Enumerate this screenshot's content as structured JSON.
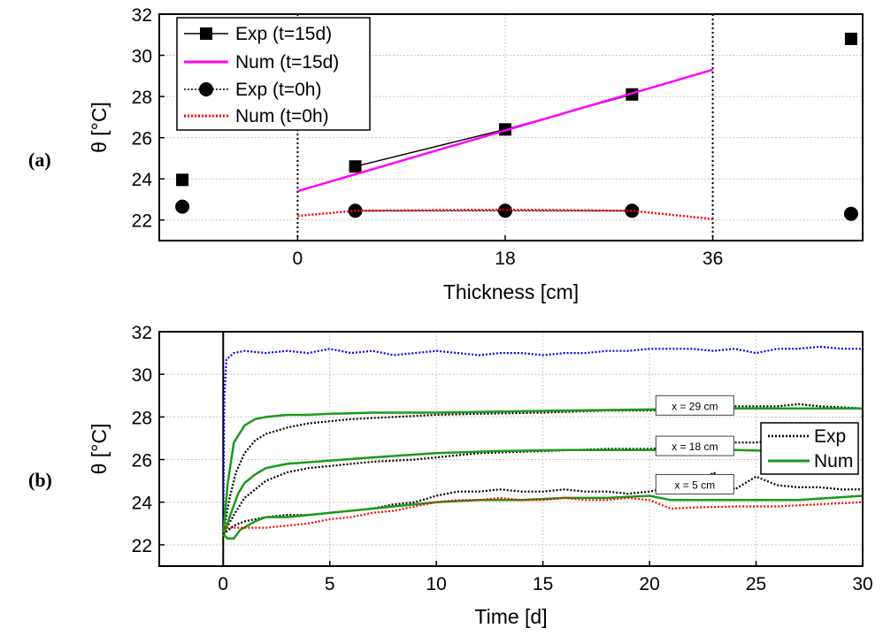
{
  "panel_a_label": "(a)",
  "panel_b_label": "(b)",
  "chart_data": [
    {
      "id": "a",
      "type": "scatter",
      "title": "",
      "xlabel": "Thickness [cm]",
      "ylabel": "θ [°C]",
      "xlim": [
        -12,
        49
      ],
      "ylim": [
        21,
        32
      ],
      "xticks": [
        0,
        18,
        36
      ],
      "yticks": [
        22,
        24,
        26,
        28,
        30,
        32
      ],
      "vlines": [
        0,
        36
      ],
      "grid": true,
      "legend_position": "top-left",
      "series": [
        {
          "name": "Exp (t=15d)",
          "style": "line-square",
          "color": "#000000",
          "x": [
            -10,
            5,
            18,
            29,
            48
          ],
          "y": [
            23.95,
            24.6,
            26.4,
            28.1,
            30.8
          ],
          "line_x": [
            5,
            18,
            29
          ],
          "line_y": [
            24.6,
            26.4,
            28.1
          ]
        },
        {
          "name": "Num (t=15d)",
          "style": "line",
          "color": "#ff00ff",
          "x": [
            0,
            36
          ],
          "y": [
            23.4,
            29.3
          ]
        },
        {
          "name": "Exp (t=0h)",
          "style": "dotted-circle",
          "color": "#000000",
          "x": [
            -10,
            5,
            18,
            29,
            48
          ],
          "y": [
            22.65,
            22.45,
            22.45,
            22.45,
            22.3
          ],
          "line_x": [
            5,
            18,
            29
          ],
          "line_y": [
            22.45,
            22.45,
            22.45
          ]
        },
        {
          "name": "Num (t=0h)",
          "style": "dotted",
          "color": "#ff0000",
          "x": [
            0,
            5,
            18,
            29,
            36
          ],
          "y": [
            22.2,
            22.45,
            22.5,
            22.45,
            22.05
          ]
        }
      ]
    },
    {
      "id": "b",
      "type": "line",
      "title": "",
      "xlabel": "Time [d]",
      "ylabel": "θ [°C]",
      "xlim": [
        -3,
        30
      ],
      "ylim": [
        21,
        32
      ],
      "xticks": [
        0,
        5,
        10,
        15,
        20,
        25,
        30
      ],
      "yticks": [
        22,
        24,
        26,
        28,
        30,
        32
      ],
      "vlines": [
        0
      ],
      "grid": true,
      "legend_position": "right",
      "legend": [
        "Exp",
        "Num"
      ],
      "annotations": [
        {
          "text": "x = 29 cm",
          "x": 20.3,
          "y": 28.5
        },
        {
          "text": "x = 18 cm",
          "x": 20.3,
          "y": 26.6
        },
        {
          "text": "x = 5 cm",
          "x": 20.3,
          "y": 24.8
        }
      ],
      "series": [
        {
          "name": "blue",
          "color": "#0000ff",
          "style": "dotted",
          "x": [
            0,
            0.05,
            0.15,
            0.5,
            1,
            2,
            3,
            4,
            5,
            6,
            7,
            8,
            9,
            10,
            11,
            12,
            13,
            14,
            15,
            16,
            17,
            18,
            19,
            20,
            21,
            22,
            23,
            24,
            25,
            26,
            27,
            28,
            29,
            30
          ],
          "y": [
            22.5,
            29.0,
            30.7,
            31.0,
            31.1,
            31.0,
            31.1,
            31.0,
            31.2,
            31.0,
            31.1,
            30.9,
            31.0,
            31.1,
            31.0,
            30.9,
            31.0,
            31.0,
            30.9,
            31.0,
            31.0,
            31.1,
            31.1,
            31.2,
            31.2,
            31.2,
            31.1,
            31.2,
            31.0,
            31.2,
            31.2,
            31.3,
            31.2,
            31.2
          ]
        },
        {
          "name": "Exp x=29",
          "color": "#000000",
          "style": "dotted",
          "x": [
            0,
            0.3,
            0.6,
            1,
            1.5,
            2,
            3,
            4,
            5,
            6,
            8,
            10,
            12,
            15,
            18,
            20,
            22,
            24,
            26,
            27,
            28,
            30
          ],
          "y": [
            22.5,
            24.2,
            25.4,
            26.3,
            26.9,
            27.2,
            27.5,
            27.7,
            27.8,
            27.9,
            28.0,
            28.1,
            28.15,
            28.2,
            28.3,
            28.3,
            28.4,
            28.5,
            28.5,
            28.6,
            28.5,
            28.4
          ]
        },
        {
          "name": "Num x=29",
          "color": "#1a9a1a",
          "style": "solid",
          "x": [
            0,
            0.2,
            0.5,
            1,
            1.5,
            2,
            3,
            4,
            5,
            7,
            10,
            13,
            16,
            20,
            24,
            27,
            30
          ],
          "y": [
            22.4,
            24.8,
            26.8,
            27.6,
            27.9,
            28.0,
            28.1,
            28.1,
            28.15,
            28.2,
            28.2,
            28.25,
            28.3,
            28.35,
            28.4,
            28.4,
            28.4
          ]
        },
        {
          "name": "Exp x=18",
          "color": "#000000",
          "style": "dotted",
          "x": [
            0,
            0.5,
            1,
            2,
            3,
            4,
            5,
            7,
            9,
            10,
            12,
            15,
            18,
            20,
            22,
            23,
            24,
            25,
            26
          ],
          "y": [
            22.5,
            23.4,
            24.2,
            25.0,
            25.4,
            25.6,
            25.7,
            25.9,
            26.0,
            26.1,
            26.3,
            26.4,
            26.5,
            26.5,
            26.6,
            26.7,
            26.8,
            26.8,
            26.9
          ]
        },
        {
          "name": "Num x=18",
          "color": "#1a9a1a",
          "style": "solid",
          "x": [
            0,
            0.3,
            0.7,
            1,
            1.5,
            2,
            3,
            5,
            7,
            10,
            13,
            16,
            20,
            24,
            26
          ],
          "y": [
            22.4,
            23.3,
            24.4,
            24.9,
            25.3,
            25.6,
            25.8,
            25.95,
            26.1,
            26.3,
            26.4,
            26.45,
            26.45,
            26.45,
            26.4
          ]
        },
        {
          "name": "Exp x=5",
          "color": "#000000",
          "style": "dotted",
          "x": [
            0,
            0.5,
            1,
            2,
            3,
            4,
            5,
            6,
            7,
            8,
            9,
            10,
            11,
            12,
            13,
            14,
            15,
            16,
            17,
            18,
            19,
            20,
            21,
            22,
            23,
            24,
            25,
            26,
            27,
            28,
            29,
            30
          ],
          "y": [
            22.5,
            22.9,
            23.1,
            23.3,
            23.4,
            23.4,
            23.5,
            23.6,
            23.7,
            23.9,
            24.0,
            24.3,
            24.5,
            24.5,
            24.6,
            24.5,
            24.5,
            24.6,
            24.5,
            24.5,
            24.4,
            24.5,
            24.7,
            24.5,
            25.4,
            24.6,
            25.2,
            24.8,
            24.7,
            24.7,
            24.6,
            24.6
          ]
        },
        {
          "name": "Num x=5",
          "color": "#1a9a1a",
          "style": "solid",
          "x": [
            0,
            0.2,
            0.5,
            0.8,
            1.5,
            2,
            3,
            4,
            5,
            6,
            7,
            8,
            9,
            10,
            12,
            14,
            16,
            18,
            20,
            21,
            23,
            25,
            27,
            30
          ],
          "y": [
            22.5,
            22.3,
            22.3,
            22.7,
            23.1,
            23.3,
            23.3,
            23.4,
            23.5,
            23.6,
            23.7,
            23.8,
            23.9,
            24.0,
            24.1,
            24.1,
            24.2,
            24.2,
            24.3,
            24.1,
            24.1,
            24.1,
            24.1,
            24.3
          ]
        },
        {
          "name": "red",
          "color": "#ff0000",
          "style": "dotted",
          "x": [
            0,
            0.5,
            1,
            2,
            3,
            4,
            5,
            6,
            7,
            8,
            9,
            10,
            11,
            12,
            13,
            14,
            15,
            16,
            17,
            18,
            19,
            20,
            21,
            22,
            24,
            26,
            28,
            30
          ],
          "y": [
            22.8,
            22.8,
            22.8,
            22.8,
            22.9,
            23.0,
            23.2,
            23.3,
            23.5,
            23.6,
            23.8,
            24.0,
            24.1,
            24.1,
            24.2,
            24.1,
            24.1,
            24.2,
            24.1,
            24.1,
            24.2,
            24.1,
            23.7,
            23.75,
            23.8,
            23.8,
            23.9,
            24.0
          ]
        }
      ]
    }
  ]
}
